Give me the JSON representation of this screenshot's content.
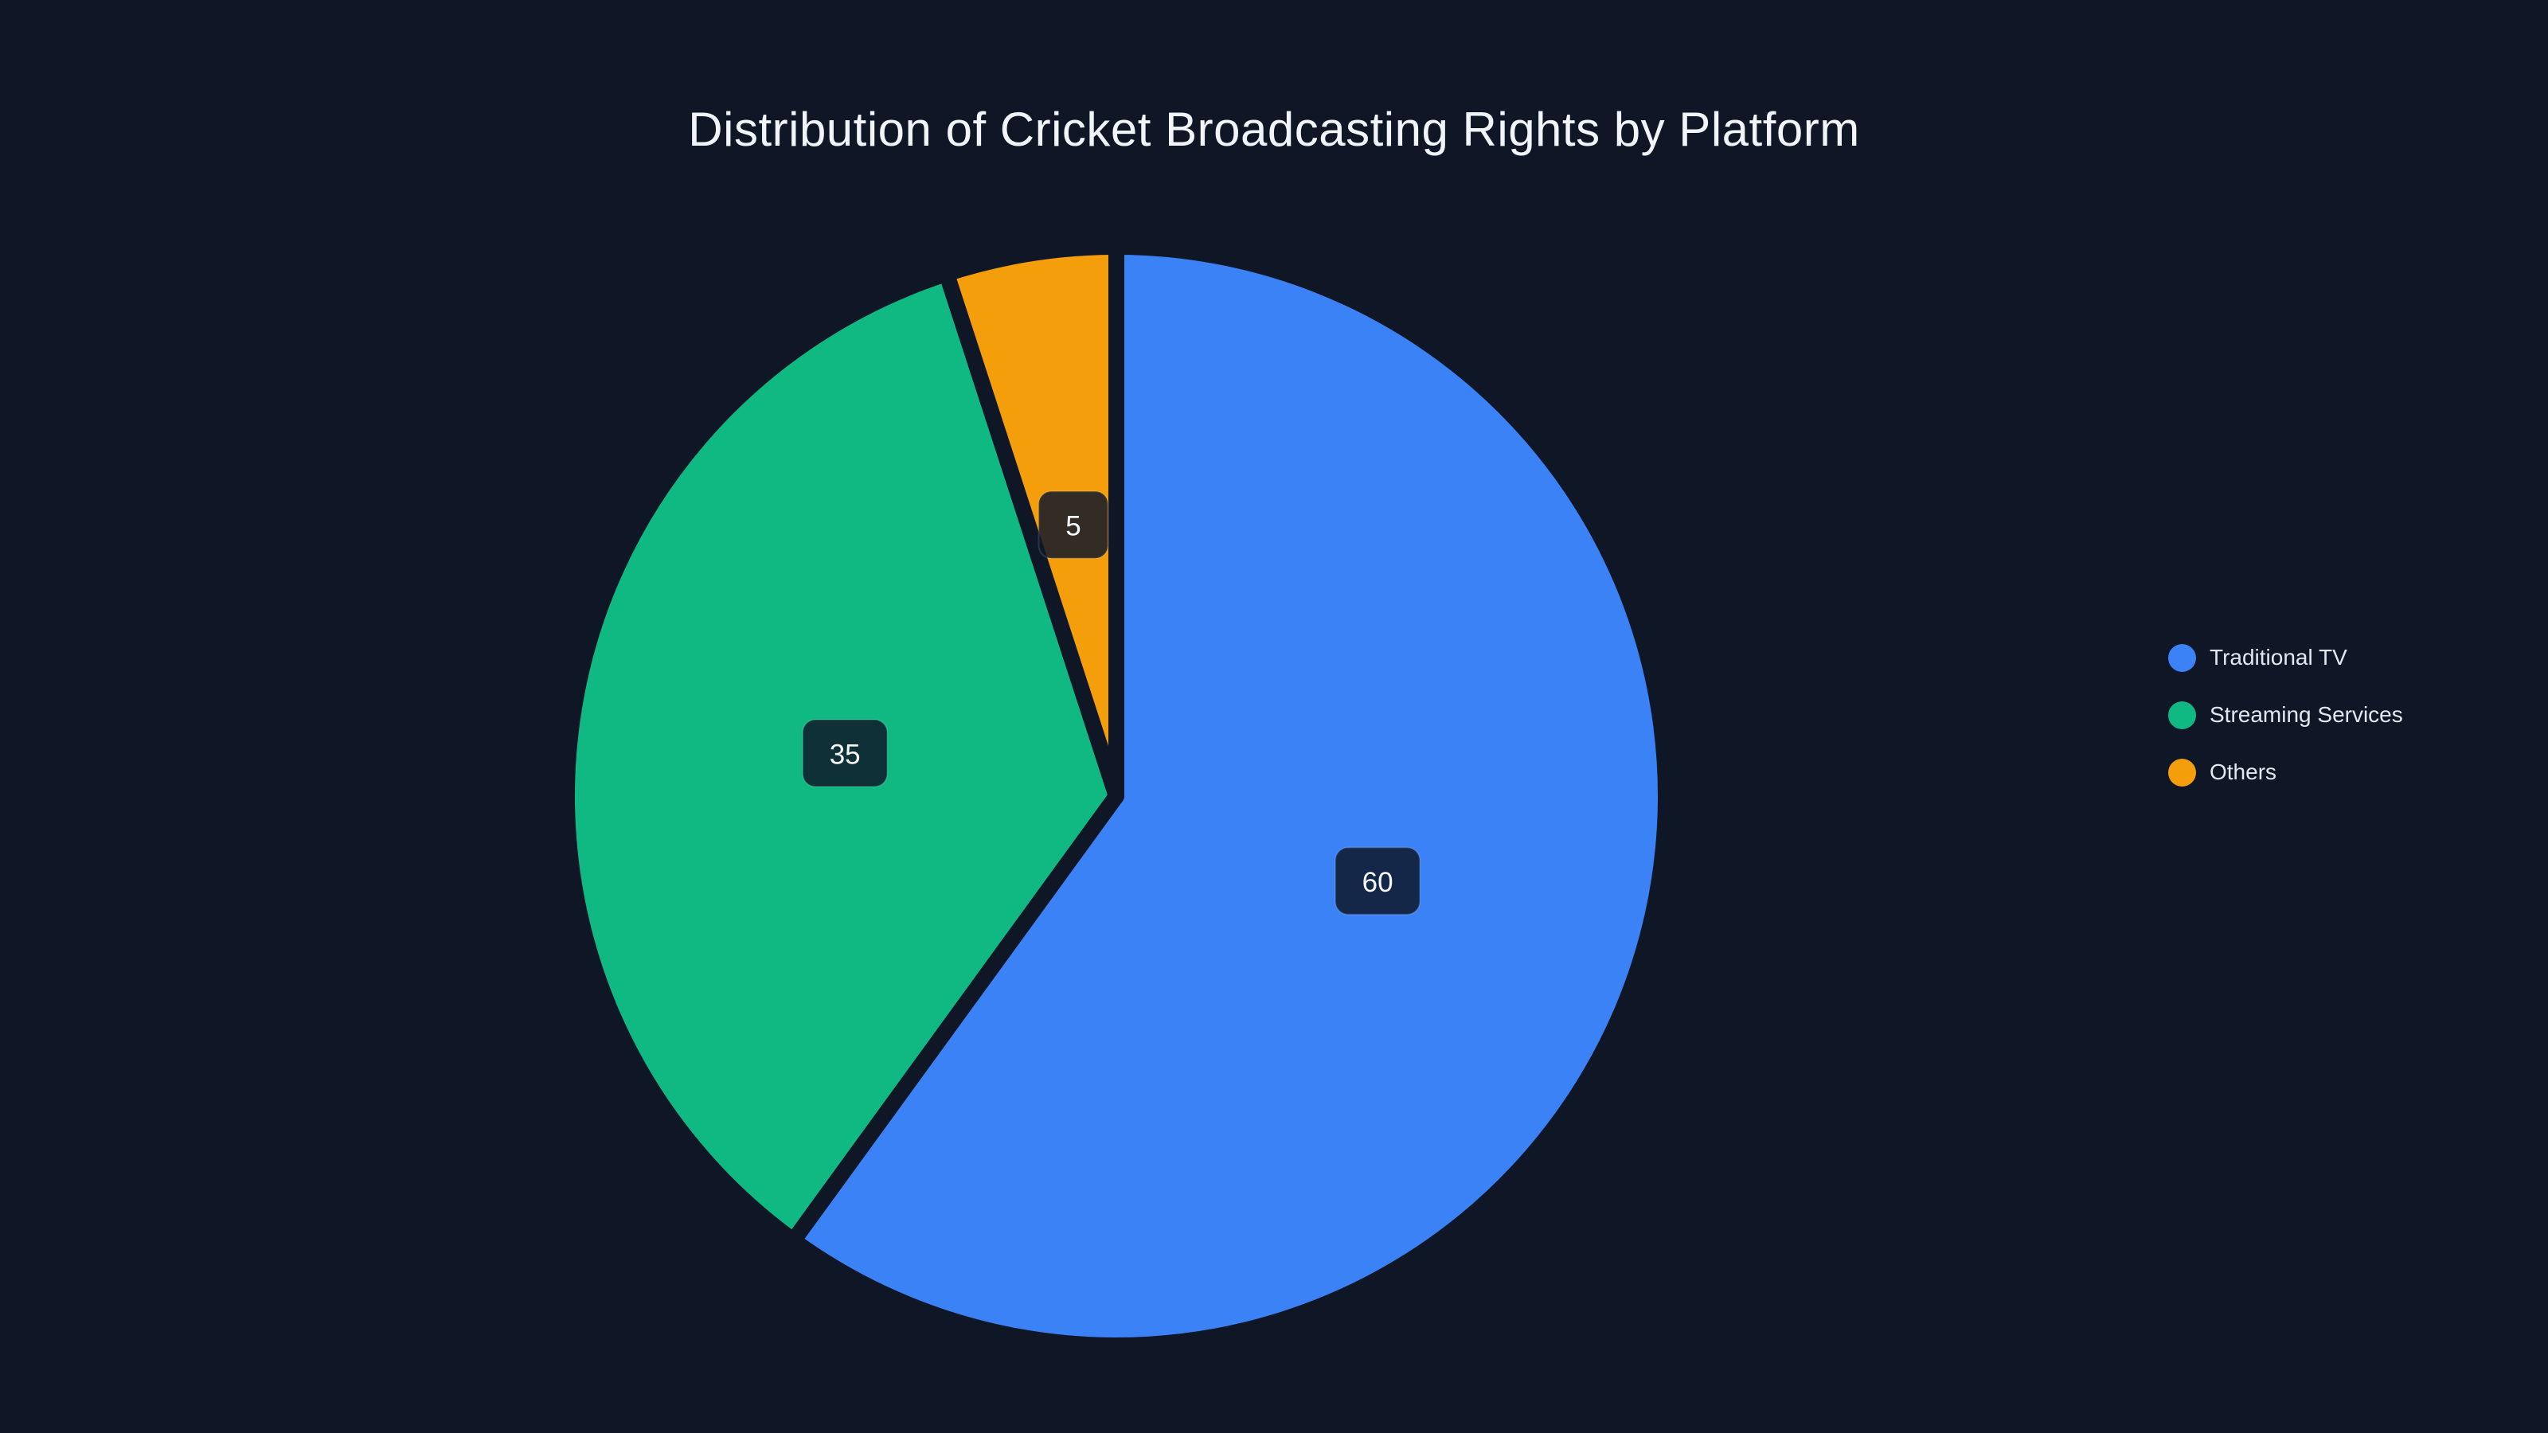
{
  "title": "Distribution of Cricket Broadcasting Rights by Platform",
  "colors": {
    "background": "#0f1727",
    "title_text": "#f1f5f9",
    "legend_text": "#e2e8f0",
    "slice_label_text": "#f8fafc",
    "slice_label_box_bg": "rgba(15, 23, 42, 0.85)",
    "slice_label_box_border": "rgba(255, 255, 255, 0.12)"
  },
  "chart_data": {
    "type": "pie",
    "title": "Distribution of Cricket Broadcasting Rights by Platform",
    "labels": [
      "Traditional TV",
      "Streaming Services",
      "Others"
    ],
    "values": [
      60,
      35,
      5
    ],
    "value_labels": [
      "60",
      "35",
      "5"
    ],
    "slice_colors": [
      "#3b82f6",
      "#10b981",
      "#f59e0b"
    ],
    "start_angle": "top",
    "direction": "clockwise",
    "label_radius_fraction": 0.5,
    "legend_position": "right",
    "grid": false
  },
  "legend": {
    "items": [
      {
        "label": "Traditional TV",
        "color": "#3b82f6"
      },
      {
        "label": "Streaming Services",
        "color": "#10b981"
      },
      {
        "label": "Others",
        "color": "#f59e0b"
      }
    ]
  }
}
